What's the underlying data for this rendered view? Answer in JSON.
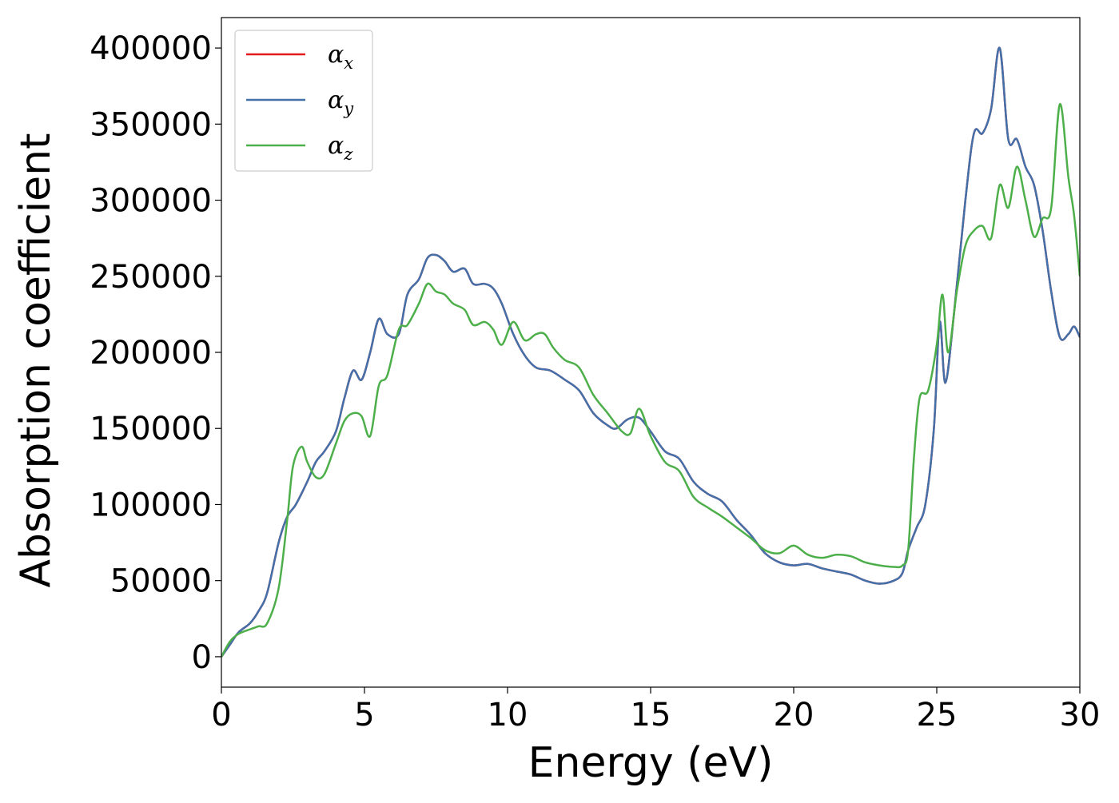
{
  "chart_data": {
    "type": "line",
    "title": "",
    "xlabel": "Energy (eV)",
    "ylabel": "Absorption coefficient",
    "xlim": [
      0,
      30
    ],
    "ylim": [
      -20000,
      420000
    ],
    "xticks": [
      0,
      5,
      10,
      15,
      20,
      25,
      30
    ],
    "yticks": [
      0,
      50000,
      100000,
      150000,
      200000,
      250000,
      300000,
      350000,
      400000
    ],
    "xtick_labels": [
      "0",
      "5",
      "10",
      "15",
      "20",
      "25",
      "30"
    ],
    "ytick_labels": [
      "0",
      "50000",
      "100000",
      "150000",
      "200000",
      "250000",
      "300000",
      "350000",
      "400000"
    ],
    "grid": false,
    "legend_position": "top-left",
    "series": [
      {
        "name": "α",
        "subscript": "x",
        "color": "#e41a1c",
        "x": [
          0,
          0.3,
          0.6,
          1.0,
          1.3,
          1.6,
          2.0,
          2.3,
          2.6,
          3.0,
          3.3,
          3.6,
          4.0,
          4.3,
          4.6,
          4.9,
          5.2,
          5.5,
          5.8,
          6.2,
          6.5,
          6.9,
          7.2,
          7.5,
          7.8,
          8.1,
          8.5,
          8.8,
          9.2,
          9.5,
          9.8,
          10.2,
          10.6,
          11.0,
          11.5,
          12.0,
          12.5,
          13.0,
          13.5,
          13.8,
          14.2,
          14.6,
          15.0,
          15.5,
          16.0,
          16.5,
          17.0,
          17.5,
          18.0,
          18.5,
          19.0,
          19.5,
          20.0,
          20.5,
          21.0,
          21.5,
          22.0,
          22.5,
          23.0,
          23.5,
          23.8,
          24.0,
          24.3,
          24.6,
          24.9,
          25.1,
          25.3,
          25.6,
          26.0,
          26.3,
          26.6,
          26.9,
          27.2,
          27.5,
          27.8,
          28.1,
          28.4,
          28.7,
          29.0,
          29.3,
          29.6,
          29.8,
          30.0
        ],
        "y": [
          0,
          8000,
          16000,
          22000,
          30000,
          42000,
          75000,
          92000,
          100000,
          115000,
          128000,
          135000,
          148000,
          170000,
          188000,
          182000,
          200000,
          222000,
          212000,
          212000,
          238000,
          248000,
          262000,
          264000,
          260000,
          253000,
          255000,
          245000,
          245000,
          242000,
          232000,
          212000,
          198000,
          190000,
          188000,
          182000,
          175000,
          160000,
          152000,
          150000,
          156000,
          157000,
          148000,
          135000,
          130000,
          115000,
          107000,
          102000,
          90000,
          80000,
          68000,
          62000,
          60000,
          61000,
          58000,
          56000,
          54000,
          50000,
          48000,
          50000,
          55000,
          70000,
          85000,
          100000,
          150000,
          220000,
          180000,
          225000,
          300000,
          344000,
          344000,
          360000,
          400000,
          340000,
          340000,
          322000,
          310000,
          280000,
          240000,
          210000,
          212000,
          217000,
          210000
        ]
      },
      {
        "name": "α",
        "subscript": "y",
        "color": "#4470aa",
        "x": [
          0,
          0.3,
          0.6,
          1.0,
          1.3,
          1.6,
          2.0,
          2.3,
          2.6,
          3.0,
          3.3,
          3.6,
          4.0,
          4.3,
          4.6,
          4.9,
          5.2,
          5.5,
          5.8,
          6.2,
          6.5,
          6.9,
          7.2,
          7.5,
          7.8,
          8.1,
          8.5,
          8.8,
          9.2,
          9.5,
          9.8,
          10.2,
          10.6,
          11.0,
          11.5,
          12.0,
          12.5,
          13.0,
          13.5,
          13.8,
          14.2,
          14.6,
          15.0,
          15.5,
          16.0,
          16.5,
          17.0,
          17.5,
          18.0,
          18.5,
          19.0,
          19.5,
          20.0,
          20.5,
          21.0,
          21.5,
          22.0,
          22.5,
          23.0,
          23.5,
          23.8,
          24.0,
          24.3,
          24.6,
          24.9,
          25.1,
          25.3,
          25.6,
          26.0,
          26.3,
          26.6,
          26.9,
          27.2,
          27.5,
          27.8,
          28.1,
          28.4,
          28.7,
          29.0,
          29.3,
          29.6,
          29.8,
          30.0
        ],
        "y": [
          0,
          8000,
          16000,
          22000,
          30000,
          42000,
          75000,
          92000,
          100000,
          115000,
          128000,
          135000,
          148000,
          170000,
          188000,
          182000,
          200000,
          222000,
          212000,
          212000,
          238000,
          248000,
          262000,
          264000,
          260000,
          253000,
          255000,
          245000,
          245000,
          242000,
          232000,
          212000,
          198000,
          190000,
          188000,
          182000,
          175000,
          160000,
          152000,
          150000,
          156000,
          157000,
          148000,
          135000,
          130000,
          115000,
          107000,
          102000,
          90000,
          80000,
          68000,
          62000,
          60000,
          61000,
          58000,
          56000,
          54000,
          50000,
          48000,
          50000,
          55000,
          70000,
          85000,
          100000,
          150000,
          220000,
          180000,
          225000,
          300000,
          344000,
          344000,
          360000,
          400000,
          340000,
          340000,
          322000,
          310000,
          280000,
          240000,
          210000,
          212000,
          217000,
          210000
        ]
      },
      {
        "name": "α",
        "subscript": "z",
        "color": "#4daf4a",
        "x": [
          0,
          0.3,
          0.6,
          1.0,
          1.3,
          1.6,
          2.0,
          2.3,
          2.5,
          2.8,
          3.0,
          3.3,
          3.6,
          4.0,
          4.3,
          4.6,
          4.9,
          5.2,
          5.5,
          5.8,
          6.2,
          6.5,
          6.9,
          7.2,
          7.5,
          7.8,
          8.1,
          8.5,
          8.8,
          9.2,
          9.5,
          9.8,
          10.2,
          10.6,
          11.0,
          11.3,
          11.6,
          12.0,
          12.5,
          13.0,
          13.5,
          14.0,
          14.3,
          14.6,
          15.0,
          15.5,
          16.0,
          16.5,
          17.0,
          17.5,
          18.0,
          18.5,
          19.0,
          19.5,
          20.0,
          20.5,
          21.0,
          21.5,
          22.0,
          22.5,
          23.0,
          23.5,
          23.8,
          24.0,
          24.2,
          24.4,
          24.7,
          25.0,
          25.2,
          25.4,
          25.7,
          26.0,
          26.3,
          26.6,
          26.9,
          27.2,
          27.5,
          27.8,
          28.1,
          28.4,
          28.7,
          29.0,
          29.3,
          29.6,
          29.8,
          30.0
        ],
        "y": [
          0,
          10000,
          15000,
          18000,
          20000,
          22000,
          45000,
          90000,
          125000,
          138000,
          128000,
          118000,
          120000,
          140000,
          155000,
          160000,
          158000,
          145000,
          178000,
          185000,
          215000,
          218000,
          232000,
          245000,
          240000,
          238000,
          232000,
          228000,
          218000,
          220000,
          215000,
          205000,
          220000,
          208000,
          212000,
          212000,
          203000,
          195000,
          190000,
          172000,
          160000,
          148000,
          147000,
          163000,
          145000,
          128000,
          122000,
          105000,
          98000,
          92000,
          85000,
          78000,
          70000,
          68000,
          73000,
          67000,
          65000,
          67000,
          66000,
          62000,
          60000,
          59000,
          60000,
          70000,
          130000,
          170000,
          175000,
          205000,
          238000,
          200000,
          240000,
          270000,
          280000,
          283000,
          275000,
          310000,
          295000,
          322000,
          300000,
          276000,
          288000,
          295000,
          363000,
          315000,
          290000,
          250000
        ]
      }
    ]
  }
}
